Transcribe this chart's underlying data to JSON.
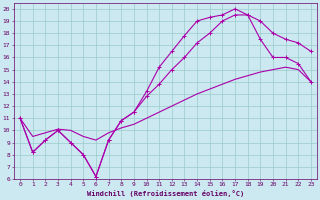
{
  "xlabel": "Windchill (Refroidissement éolien,°C)",
  "bg_color": "#cce8f0",
  "line_color": "#aa00aa",
  "grid_color": "#99cccc",
  "tick_color": "#660066",
  "label_color": "#660066",
  "xlim": [
    -0.5,
    23.5
  ],
  "ylim": [
    6,
    20.5
  ],
  "xticks": [
    0,
    1,
    2,
    3,
    4,
    5,
    6,
    7,
    8,
    9,
    10,
    11,
    12,
    13,
    14,
    15,
    16,
    17,
    18,
    19,
    20,
    21,
    22,
    23
  ],
  "yticks": [
    6,
    7,
    8,
    9,
    10,
    11,
    12,
    13,
    14,
    15,
    16,
    17,
    18,
    19,
    20
  ],
  "curve1_x": [
    0,
    1,
    2,
    3,
    4,
    5,
    6,
    7,
    8,
    9,
    10,
    11,
    12,
    13,
    14,
    15,
    16,
    17,
    18,
    19,
    20,
    21,
    22,
    23
  ],
  "curve1_y": [
    11,
    8.2,
    9.2,
    10.0,
    9.0,
    8.0,
    6.2,
    9.2,
    10.8,
    11.5,
    13.2,
    15.2,
    16.5,
    17.8,
    19.0,
    19.3,
    19.5,
    20.0,
    19.5,
    17.5,
    16.0,
    16.0,
    15.5,
    14.0
  ],
  "curve2_x": [
    0,
    1,
    2,
    3,
    4,
    5,
    6,
    7,
    8,
    9,
    10,
    11,
    12,
    13,
    14,
    15,
    16,
    17,
    18,
    19,
    20,
    21,
    22,
    23
  ],
  "curve2_y": [
    11,
    8.2,
    9.2,
    10.0,
    9.0,
    8.0,
    6.2,
    9.2,
    10.8,
    11.5,
    12.8,
    13.8,
    15.0,
    16.0,
    17.2,
    18.0,
    19.0,
    19.5,
    19.5,
    19.0,
    18.0,
    17.5,
    17.2,
    16.5
  ],
  "curve3_x": [
    0,
    1,
    2,
    3,
    4,
    5,
    6,
    7,
    8,
    9,
    10,
    11,
    12,
    13,
    14,
    15,
    16,
    17,
    18,
    19,
    20,
    21,
    22,
    23
  ],
  "curve3_y": [
    11,
    9.5,
    9.8,
    10.1,
    10.0,
    9.5,
    9.2,
    9.8,
    10.2,
    10.5,
    11.0,
    11.5,
    12.0,
    12.5,
    13.0,
    13.4,
    13.8,
    14.2,
    14.5,
    14.8,
    15.0,
    15.2,
    15.0,
    14.0
  ]
}
